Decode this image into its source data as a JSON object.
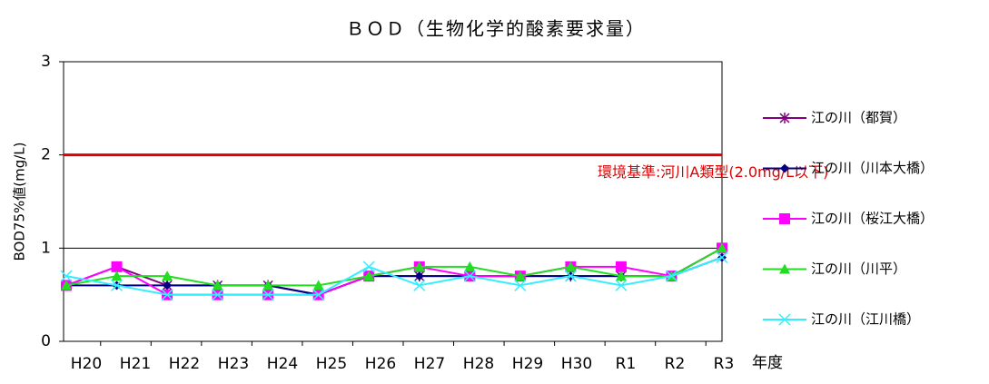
{
  "chart_data": {
    "type": "line",
    "title": "ＢＯＤ（生物化学的酸素要求量）",
    "x_label": "年度",
    "y_label": "BOD75%値(mg/L)",
    "categories": [
      "H20",
      "H21",
      "H22",
      "H23",
      "H24",
      "H25",
      "H26",
      "H27",
      "H28",
      "H29",
      "H30",
      "R1",
      "R2",
      "R3"
    ],
    "ylim": [
      0,
      3
    ],
    "yticks": [
      0,
      1,
      2,
      3
    ],
    "grid": true,
    "legend": "right",
    "standard": {
      "value": 2,
      "label": "環境基準:河川A類型(2.0mg/L以下)",
      "color": "#e00000"
    },
    "series": [
      {
        "name": "江の川（都賀）",
        "color": "#800080",
        "marker": "asterisk",
        "values": [
          0.6,
          0.8,
          0.6,
          0.6,
          0.6,
          0.5,
          0.7,
          0.7,
          0.7,
          0.7,
          0.7,
          0.7,
          0.7,
          1.0
        ]
      },
      {
        "name": "江の川（川本大橋）",
        "color": "#000080",
        "marker": "diamond",
        "values": [
          0.6,
          0.6,
          0.6,
          0.6,
          0.6,
          0.5,
          0.7,
          0.7,
          0.7,
          0.7,
          0.7,
          0.7,
          0.7,
          0.9
        ]
      },
      {
        "name": "江の川（桜江大橋）",
        "color": "#ff00ff",
        "marker": "square",
        "values": [
          0.6,
          0.8,
          0.5,
          0.5,
          0.5,
          0.5,
          0.7,
          0.8,
          0.7,
          0.7,
          0.8,
          0.8,
          0.7,
          1.0
        ]
      },
      {
        "name": "江の川（川平）",
        "color": "#22dd22",
        "marker": "triangle",
        "values": [
          0.6,
          0.7,
          0.7,
          0.6,
          0.6,
          0.6,
          0.7,
          0.8,
          0.8,
          0.7,
          0.8,
          0.7,
          0.7,
          1.0
        ]
      },
      {
        "name": "江の川（江川橋）",
        "color": "#33eeff",
        "marker": "cross",
        "values": [
          0.7,
          0.6,
          0.5,
          0.5,
          0.5,
          0.5,
          0.8,
          0.6,
          0.7,
          0.6,
          0.7,
          0.6,
          0.7,
          0.9
        ]
      }
    ]
  }
}
